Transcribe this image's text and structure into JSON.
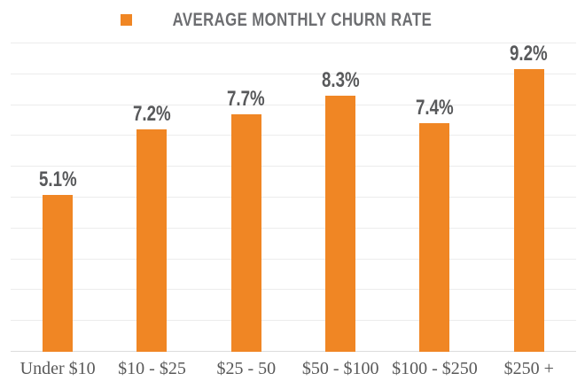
{
  "chart_data": {
    "type": "bar",
    "title": "AVERAGE MONTHLY CHURN RATE",
    "categories": [
      "Under $10",
      "$10 - $25",
      "$25 - 50",
      "$50 - $100",
      "$100 - $250",
      "$250 +"
    ],
    "values": [
      5.1,
      7.2,
      7.7,
      8.3,
      7.4,
      9.2
    ],
    "value_labels": [
      "5.1%",
      "7.2%",
      "7.7%",
      "8.3%",
      "7.4%",
      "9.2%"
    ],
    "xlabel": "",
    "ylabel": "",
    "ylim": [
      0,
      10
    ],
    "gridline_step": 1,
    "grid": true,
    "y_axis_labels_visible": false,
    "legend_position": "top",
    "colors": {
      "bar": "#F08624",
      "value_label": "#58595B",
      "category_label": "#595959",
      "legend_text": "#6D6E71",
      "gridline": "#ECECEC",
      "baseline": "#DCDCDC",
      "background": "#FFFFFF"
    }
  }
}
